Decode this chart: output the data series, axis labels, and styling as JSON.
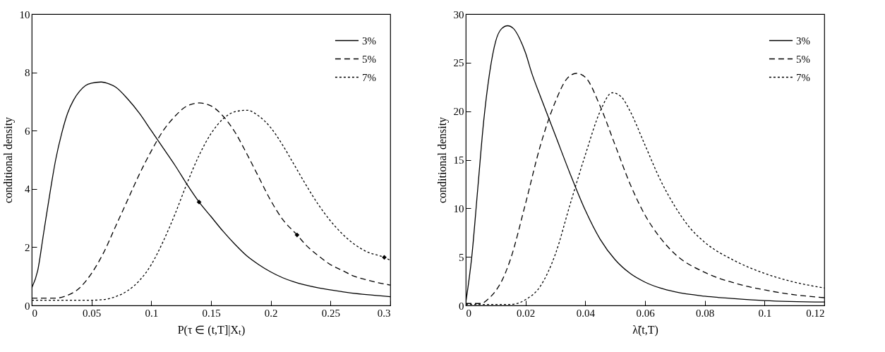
{
  "chart_data": [
    {
      "type": "line",
      "xlabel": "P(τ ∈ (t,T]|Xₜ)",
      "ylabel": "conditional density",
      "xlim": [
        0,
        0.3
      ],
      "ylim": [
        0,
        10
      ],
      "xticks": [
        0,
        0.05,
        0.1,
        0.15,
        0.2,
        0.25,
        0.3
      ],
      "yticks": [
        0,
        2,
        4,
        6,
        8,
        10
      ],
      "legend": "top right",
      "series": [
        {
          "name": "3%",
          "color": "#000000",
          "line_style": "solid",
          "x": [
            0,
            0.005,
            0.01,
            0.015,
            0.02,
            0.025,
            0.03,
            0.035,
            0.04,
            0.045,
            0.05,
            0.058,
            0.065,
            0.07,
            0.08,
            0.09,
            0.1,
            0.11,
            0.12,
            0.13,
            0.14,
            0.15,
            0.16,
            0.17,
            0.18,
            0.19,
            0.2,
            0.21,
            0.22,
            0.24,
            0.26,
            0.28,
            0.3
          ],
          "values": [
            0.6,
            1.2,
            2.5,
            3.8,
            5.0,
            5.9,
            6.6,
            7.05,
            7.35,
            7.55,
            7.63,
            7.67,
            7.6,
            7.5,
            7.1,
            6.6,
            6.0,
            5.4,
            4.8,
            4.15,
            3.55,
            3.05,
            2.55,
            2.1,
            1.7,
            1.4,
            1.15,
            0.95,
            0.8,
            0.6,
            0.47,
            0.37,
            0.3
          ]
        },
        {
          "name": "5%",
          "color": "#000000",
          "line_style": "dashed",
          "x": [
            0,
            0.02,
            0.03,
            0.04,
            0.05,
            0.06,
            0.07,
            0.08,
            0.09,
            0.1,
            0.11,
            0.12,
            0.13,
            0.14,
            0.15,
            0.16,
            0.17,
            0.18,
            0.19,
            0.2,
            0.21,
            0.222,
            0.23,
            0.24,
            0.25,
            0.26,
            0.27,
            0.28,
            0.29,
            0.3
          ],
          "values": [
            0.25,
            0.25,
            0.35,
            0.6,
            1.1,
            1.8,
            2.7,
            3.6,
            4.5,
            5.3,
            6.0,
            6.5,
            6.85,
            6.95,
            6.85,
            6.5,
            5.95,
            5.2,
            4.4,
            3.6,
            2.95,
            2.42,
            2.05,
            1.7,
            1.4,
            1.2,
            1.0,
            0.88,
            0.78,
            0.7
          ]
        },
        {
          "name": "7%",
          "color": "#000000",
          "line_style": "dotted",
          "x": [
            0,
            0.05,
            0.06,
            0.07,
            0.08,
            0.09,
            0.1,
            0.11,
            0.12,
            0.13,
            0.14,
            0.15,
            0.16,
            0.17,
            0.18,
            0.19,
            0.2,
            0.21,
            0.22,
            0.23,
            0.24,
            0.25,
            0.26,
            0.27,
            0.28,
            0.295,
            0.3
          ],
          "values": [
            0.18,
            0.18,
            0.2,
            0.3,
            0.5,
            0.85,
            1.4,
            2.2,
            3.15,
            4.2,
            5.15,
            5.9,
            6.4,
            6.65,
            6.7,
            6.5,
            6.1,
            5.5,
            4.8,
            4.1,
            3.45,
            2.9,
            2.45,
            2.1,
            1.85,
            1.65,
            1.55
          ]
        },
        {
          "type": "scatter",
          "marker": "diamond",
          "color": "#000000",
          "x": [
            0.14,
            0.222,
            0.295
          ],
          "values": [
            3.55,
            2.42,
            1.65
          ]
        }
      ]
    },
    {
      "type": "line",
      "xlabel": "λ̃(t,T)",
      "ylabel": "conditional density",
      "xlim": [
        0,
        0.12
      ],
      "ylim": [
        0,
        30
      ],
      "xticks": [
        0,
        0.02,
        0.04,
        0.06,
        0.08,
        0.1,
        0.12
      ],
      "yticks": [
        0,
        5,
        10,
        15,
        20,
        25,
        30
      ],
      "legend": "top right",
      "series": [
        {
          "name": "3%",
          "color": "#000000",
          "line_style": "solid",
          "x": [
            0,
            0.002,
            0.004,
            0.006,
            0.008,
            0.01,
            0.012,
            0.014,
            0.016,
            0.018,
            0.02,
            0.022,
            0.025,
            0.03,
            0.035,
            0.04,
            0.045,
            0.05,
            0.055,
            0.06,
            0.065,
            0.07,
            0.08,
            0.09,
            0.1,
            0.12
          ],
          "values": [
            0.3,
            5,
            12,
            19,
            24,
            27.2,
            28.5,
            28.8,
            28.5,
            27.5,
            26,
            24,
            21.5,
            17.5,
            13.5,
            9.8,
            6.8,
            4.7,
            3.3,
            2.4,
            1.8,
            1.4,
            0.95,
            0.7,
            0.5,
            0.35
          ]
        },
        {
          "name": "5%",
          "color": "#000000",
          "line_style": "dashed",
          "x": [
            0,
            0.005,
            0.008,
            0.01,
            0.012,
            0.015,
            0.02,
            0.025,
            0.03,
            0.034,
            0.037,
            0.04,
            0.045,
            0.05,
            0.055,
            0.06,
            0.065,
            0.07,
            0.08,
            0.09,
            0.1,
            0.11,
            0.12
          ],
          "values": [
            0.2,
            0.2,
            0.8,
            1.5,
            2.5,
            4.8,
            10.5,
            16.5,
            21,
            23.4,
            23.9,
            23.5,
            20.5,
            16.5,
            12.5,
            9.3,
            7,
            5.3,
            3.4,
            2.3,
            1.6,
            1.1,
            0.8
          ]
        },
        {
          "name": "7%",
          "color": "#000000",
          "line_style": "dotted",
          "x": [
            0,
            0.015,
            0.02,
            0.025,
            0.03,
            0.035,
            0.04,
            0.045,
            0.049,
            0.052,
            0.055,
            0.06,
            0.065,
            0.07,
            0.075,
            0.08,
            0.09,
            0.1,
            0.11,
            0.12
          ],
          "values": [
            0.1,
            0.1,
            0.6,
            2,
            5.3,
            10.5,
            15.5,
            20,
            21.9,
            21.5,
            20,
            16.5,
            13,
            10.2,
            8,
            6.5,
            4.6,
            3.3,
            2.4,
            1.8
          ]
        }
      ]
    }
  ]
}
